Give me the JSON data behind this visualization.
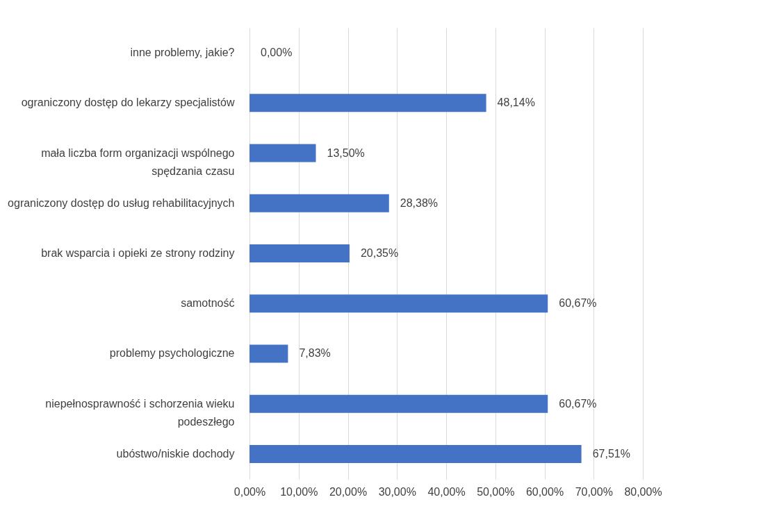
{
  "chart_data": {
    "type": "bar",
    "orientation": "horizontal",
    "categories": [
      "inne problemy, jakie?",
      "ograniczony dostęp do lekarzy specjalistów",
      "mała liczba form organizacji wspólnego spędzania czasu",
      "ograniczony dostęp do usług rehabilitacyjnych",
      "brak wsparcia i opieki ze strony rodziny",
      "samotność",
      "problemy psychologiczne",
      "niepełnosprawność i schorzenia wieku podeszłego",
      "ubóstwo/niskie dochody"
    ],
    "values": [
      0,
      48.14,
      13.5,
      28.38,
      20.35,
      60.67,
      7.83,
      60.67,
      67.51
    ],
    "value_labels": [
      "0,00%",
      "48,14%",
      "13,50%",
      "28,38%",
      "20,35%",
      "60,67%",
      "7,83%",
      "60,67%",
      "67,51%"
    ],
    "color": "#4472c4",
    "xlim": [
      0,
      80
    ],
    "xticks": [
      {
        "value": 0,
        "label": "0,00%"
      },
      {
        "value": 10,
        "label": "10,00%"
      },
      {
        "value": 20,
        "label": "20,00%"
      },
      {
        "value": 30,
        "label": "30,00%"
      },
      {
        "value": 40,
        "label": "40,00%"
      },
      {
        "value": 50,
        "label": "50,00%"
      },
      {
        "value": 60,
        "label": "60,00%"
      },
      {
        "value": 70,
        "label": "70,00%"
      },
      {
        "value": 80,
        "label": "80,00%"
      }
    ],
    "grid": "x"
  }
}
